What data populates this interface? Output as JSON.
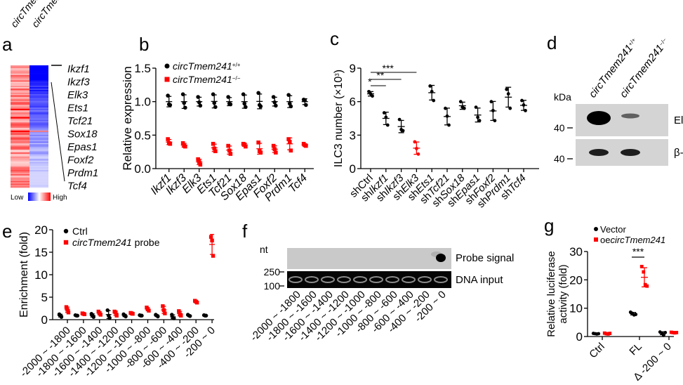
{
  "panels": {
    "a": {
      "letter": "a",
      "column_labels": [
        "circTmem241",
        "circTmem241"
      ],
      "column_superscripts": [
        "+/+",
        "−/−"
      ],
      "genes": [
        "Ikzf1",
        "Ikzf3",
        "Elk3",
        "Ets1",
        "Tcf21",
        "Sox18",
        "Epas1",
        "Foxf2",
        "Prdm1",
        "Tcf4"
      ],
      "legend_low": "Low",
      "legend_high": "High",
      "colors": {
        "low": "#0000ff",
        "mid": "#ffffff",
        "high": "#ff0000"
      }
    },
    "b": {
      "letter": "b"
    },
    "c": {
      "letter": "c"
    },
    "d": {
      "letter": "d",
      "kda_label": "kDa",
      "lane_labels": [
        "circTmem241",
        "circTmem241"
      ],
      "lane_superscripts": [
        "+/+",
        "−/−"
      ],
      "blots": [
        {
          "name": "Elk3",
          "marker": "40",
          "band_intensity": [
            1.0,
            0.35
          ]
        },
        {
          "name": "β-actin",
          "marker": "40",
          "band_intensity": [
            0.8,
            0.8
          ]
        }
      ]
    },
    "e": {
      "letter": "e"
    },
    "f": {
      "letter": "f",
      "nt_label": "nt",
      "markers": [
        "250",
        "100"
      ],
      "rows": [
        "Probe signal",
        "DNA input"
      ],
      "lanes": [
        "-2000 ~ -1800",
        "-1800 ~ -1600",
        "-1600 ~ -1400",
        "-1400 ~ -1200",
        "-1200 ~ -1000",
        "-1000 ~ -800",
        "-800 ~ -600",
        "-600 ~ -400",
        "-400 ~ -200",
        "-200 ~ 0"
      ]
    },
    "g": {
      "letter": "g"
    }
  },
  "chart_data": [
    {
      "id": "b",
      "type": "scatter",
      "title": "",
      "xlabel": "",
      "ylabel": "Relative expression",
      "ylim": [
        0,
        1.5
      ],
      "yticks": [
        "0.0",
        "0.5",
        "1.0",
        "1.5"
      ],
      "categories": [
        "Ikzf1",
        "Ikzf3",
        "Elk3",
        "Ets1",
        "Tcf21",
        "Sox18",
        "Epas1",
        "Foxf2",
        "Prdm1",
        "Tcf4"
      ],
      "legend": "top-left",
      "series": [
        {
          "name": "circTmem241",
          "sup": "+/+",
          "color": "#000000",
          "marker": "circle",
          "values": [
            [
              1.09,
              0.96,
              0.95
            ],
            [
              1.11,
              0.98,
              0.91
            ],
            [
              1.07,
              0.99,
              0.94
            ],
            [
              1.11,
              0.98,
              0.92
            ],
            [
              1.07,
              0.97,
              0.96
            ],
            [
              1.11,
              0.97,
              0.92
            ],
            [
              1.13,
              0.95,
              0.93
            ],
            [
              1.07,
              0.99,
              0.94
            ],
            [
              1.1,
              0.97,
              0.93
            ],
            [
              1.03,
              1.02,
              0.95
            ]
          ]
        },
        {
          "name": "circTmem241",
          "sup": "−/−",
          "color": "#ff0000",
          "marker": "square",
          "values": [
            [
              0.44,
              0.38,
              0.37
            ],
            [
              0.38,
              0.34,
              0.33
            ],
            [
              0.14,
              0.1,
              0.06
            ],
            [
              0.37,
              0.3,
              0.26
            ],
            [
              0.34,
              0.27,
              0.22
            ],
            [
              0.37,
              0.36,
              0.33
            ],
            [
              0.39,
              0.26,
              0.24
            ],
            [
              0.34,
              0.29,
              0.24
            ],
            [
              0.44,
              0.4,
              0.27
            ],
            [
              0.37,
              0.35,
              0.34
            ]
          ]
        }
      ]
    },
    {
      "id": "c",
      "type": "scatter",
      "title": "",
      "xlabel": "",
      "ylabel": "ILC3 number (×10³)",
      "ylim": [
        0,
        9
      ],
      "yticks": [
        "0",
        "3",
        "6",
        "9"
      ],
      "categories": [
        "shCtrl",
        "shIkzf1",
        "shIkzf3",
        "shElk3",
        "shEts1",
        "shTcf21",
        "shSox18",
        "shEpas1",
        "shFoxf2",
        "shPrdm1",
        "shTcf4"
      ],
      "highlight_color": "#ff0000",
      "highlight_index": 3,
      "values": [
        [
          6.9,
          6.7,
          6.5
        ],
        [
          5.0,
          4.6,
          3.9
        ],
        [
          4.4,
          3.5,
          3.4
        ],
        [
          2.4,
          1.8,
          1.3
        ],
        [
          7.4,
          6.9,
          6.1
        ],
        [
          5.4,
          4.7,
          3.9
        ],
        [
          6.0,
          5.5,
          5.4
        ],
        [
          5.5,
          4.6,
          4.3
        ],
        [
          6.0,
          5.2,
          4.3
        ],
        [
          7.1,
          6.7,
          5.4
        ],
        [
          6.1,
          5.7,
          5.2
        ]
      ],
      "significance": [
        {
          "from": 0,
          "to": 1,
          "label": "*"
        },
        {
          "from": 0,
          "to": 2,
          "label": "**"
        },
        {
          "from": 0,
          "to": 3,
          "label": "***"
        }
      ]
    },
    {
      "id": "e",
      "type": "scatter",
      "title": "",
      "xlabel": "",
      "ylabel": "Enrichment (fold)",
      "ylim": [
        0,
        20
      ],
      "yticks": [
        "0",
        "5",
        "10",
        "15",
        "20"
      ],
      "categories": [
        "-2000 ~ -1800",
        "-1800 ~ -1600",
        "-1600 ~ -1400",
        "-1400 ~ -1200",
        "-1200 ~ -1000",
        "-1000 ~ -800",
        "-800 ~ -600",
        "-600 ~ -400",
        "-400 ~ -200",
        "-200 ~ 0"
      ],
      "legend": "top-left",
      "series": [
        {
          "name": "Ctrl",
          "name_italic": "",
          "name_rest": "Ctrl",
          "color": "#000000",
          "marker": "circle",
          "values": [
            [
              1.2,
              0.9,
              0.6
            ],
            [
              1.0,
              0.9,
              0.9
            ],
            [
              1.3,
              0.9,
              0.6
            ],
            [
              2.1,
              0.9,
              0.4
            ],
            [
              1.2,
              0.9,
              0.7
            ],
            [
              1.0,
              0.9,
              0.9
            ],
            [
              1.1,
              0.9,
              0.7
            ],
            [
              1.1,
              0.5,
              0.3
            ],
            [
              1.1,
              0.9,
              0.8
            ],
            [
              1.0,
              0.9,
              0.9
            ]
          ]
        },
        {
          "name": "circTmem241 probe",
          "name_italic": "circTmem241",
          "name_rest": " probe",
          "color": "#ff0000",
          "marker": "square",
          "values": [
            [
              2.8,
              2.2,
              1.6
            ],
            [
              1.4,
              1.3,
              1.2
            ],
            [
              1.8,
              1.4,
              1.1
            ],
            [
              1.8,
              1.6,
              0.9
            ],
            [
              1.5,
              1.4,
              1.3
            ],
            [
              2.7,
              2.3,
              2.0
            ],
            [
              3.0,
              2.1,
              1.4
            ],
            [
              1.9,
              1.2,
              0.9
            ],
            [
              4.2,
              4.0,
              3.8
            ],
            [
              18.4,
              17.6,
              14.2
            ]
          ]
        }
      ]
    },
    {
      "id": "g",
      "type": "scatter",
      "title": "",
      "xlabel": "",
      "ylabel": "Relative luciferase activity (fold)",
      "ylabel_lines": [
        "Relative luciferase",
        "activity (fold)"
      ],
      "ylim": [
        0,
        30
      ],
      "yticks": [
        "0",
        "10",
        "20",
        "30"
      ],
      "categories": [
        "Ctrl",
        "FL",
        "Δ -200 ~ 0"
      ],
      "legend": "top",
      "series": [
        {
          "name": "Vector",
          "prefix": "",
          "italic": "",
          "rest": "Vector",
          "color": "#000000",
          "marker": "circle",
          "values": [
            [
              1.1,
              1.0,
              0.9,
              1.0
            ],
            [
              8.6,
              8.2,
              7.6,
              7.8
            ],
            [
              1.6,
              1.2,
              0.4,
              1.4
            ]
          ]
        },
        {
          "name": "oecircTmem241",
          "prefix": "oe",
          "italic": "circTmem241",
          "rest": "",
          "color": "#ff0000",
          "marker": "square",
          "values": [
            [
              1.2,
              1.0,
              0.9,
              1.1
            ],
            [
              24.7,
              22.8,
              18.3,
              17.8
            ],
            [
              1.5,
              1.4,
              1.3,
              1.4
            ]
          ]
        }
      ],
      "significance": [
        {
          "category": 1,
          "label": "***"
        }
      ]
    }
  ]
}
